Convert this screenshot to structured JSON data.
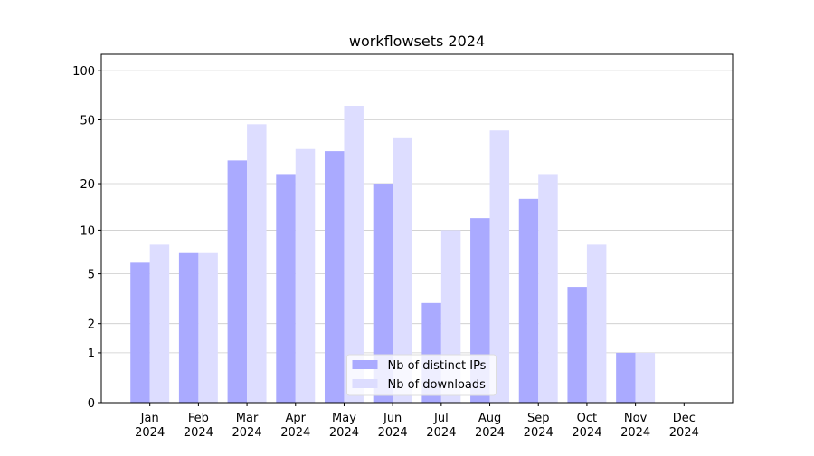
{
  "chart_data": {
    "type": "bar",
    "title": "workflowsets 2024",
    "categories": [
      "Jan\n2024",
      "Feb\n2024",
      "Mar\n2024",
      "Apr\n2024",
      "May\n2024",
      "Jun\n2024",
      "Jul\n2024",
      "Aug\n2024",
      "Sep\n2024",
      "Oct\n2024",
      "Nov\n2024",
      "Dec\n2024"
    ],
    "series": [
      {
        "name": "Nb of distinct IPs",
        "color": "#aaaaff",
        "values": [
          6,
          7,
          28,
          23,
          32,
          20,
          3,
          12,
          16,
          4,
          1,
          0
        ]
      },
      {
        "name": "Nb of downloads",
        "color": "#ddddff",
        "values": [
          8,
          7,
          47,
          33,
          61,
          39,
          10,
          43,
          23,
          8,
          1,
          0
        ]
      }
    ],
    "yscale": "log1p",
    "ylim": [
      0,
      126
    ],
    "yticks": [
      0,
      1,
      2,
      5,
      10,
      20,
      50,
      100
    ],
    "grid": true,
    "legend": "lower center"
  }
}
